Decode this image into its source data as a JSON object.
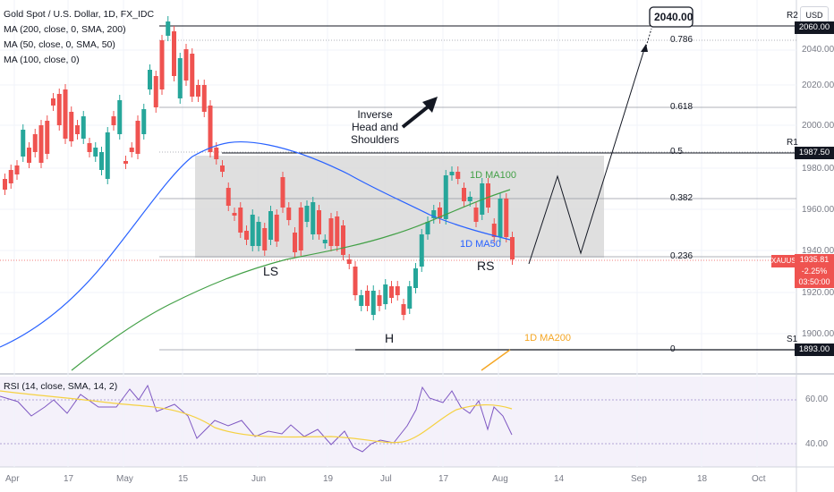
{
  "header": {
    "symbol": "Gold Spot / U.S. Dollar, 1D, FX_IDC",
    "ma200": "MA (200, close, 0, SMA, 200)",
    "ma50": "MA (50, close, 0, SMA, 50)",
    "ma100": "MA (100, close, 0)",
    "currency": "USD"
  },
  "price_axis": {
    "ticks": [
      "2060.00",
      "2040.00",
      "2020.00",
      "2000.00",
      "1980.00",
      "1960.00",
      "1940.00",
      "1920.00",
      "1900.00"
    ],
    "r2_label": "R2",
    "r2_value": "2060.00",
    "r1_label": "R1",
    "r1_value": "1987.50",
    "s1_label": "S1",
    "s1_value": "1893.00",
    "last": {
      "symbol": "XAUUSD",
      "price": "1935.81",
      "change": "-2.25%",
      "countdown": "03:50:00"
    }
  },
  "fib": {
    "l0786": "0.786",
    "l0618": "0.618",
    "l05": "0.5",
    "l0382": "0.382",
    "l0236": "0.236",
    "l0": "0"
  },
  "annotations": {
    "target": "2040.00",
    "pattern": "Inverse Head and Shoulders",
    "ls": "LS",
    "h": "H",
    "rs": "RS",
    "ma100": "1D MA100",
    "ma50": "1D MA50",
    "ma200": "1D MA200"
  },
  "rsi": {
    "legend": "RSI (14, close, SMA, 14, 2)",
    "ticks": [
      "60.00",
      "40.00"
    ]
  },
  "time_axis": [
    "Apr",
    "17",
    "May",
    "15",
    "Jun",
    "19",
    "Jul",
    "17",
    "Aug",
    "14",
    "Sep",
    "18",
    "Oct"
  ],
  "colors": {
    "up": "#26a69a",
    "down": "#ef5350",
    "ma50": "#2962ff",
    "ma100": "#43a047",
    "ma200": "#f5a623",
    "rsi": "#7e57c2",
    "rsi_ma": "#f5d142",
    "box": "#d9d9d9"
  }
}
